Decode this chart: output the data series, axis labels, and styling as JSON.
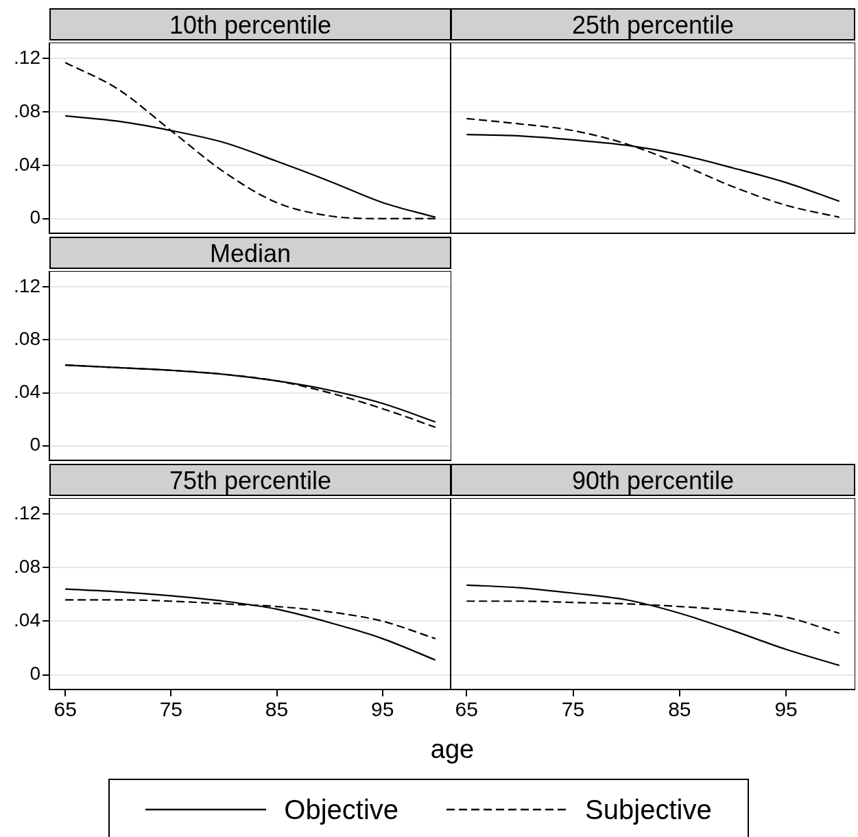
{
  "chart_data": [
    {
      "type": "line",
      "title": "10th percentile",
      "x": [
        65,
        70,
        75,
        80,
        85,
        90,
        95,
        100
      ],
      "series": [
        {
          "color": "#000000",
          "line_style": "solid",
          "values": [
            0.077,
            0.073,
            0.066,
            0.057,
            0.043,
            0.028,
            0.012,
            0.001
          ]
        },
        {
          "color": "#000000",
          "line_style": "dashed",
          "values": [
            0.117,
            0.097,
            0.066,
            0.035,
            0.012,
            0.002,
            0.0,
            0.0
          ]
        }
      ],
      "xlim": [
        63.5,
        101.5
      ],
      "xticks": [
        65,
        75,
        85,
        95
      ],
      "ylim": [
        -0.011,
        0.132
      ],
      "yticks": [
        {
          "value": 0,
          "label": "0"
        },
        {
          "value": 0.04,
          "label": ".04"
        },
        {
          "value": 0.08,
          "label": ".08"
        },
        {
          "value": 0.12,
          "label": ".12"
        }
      ],
      "grid": "y",
      "tick_labels": "y"
    },
    {
      "type": "line",
      "title": "25th percentile",
      "x": [
        65,
        70,
        75,
        80,
        85,
        90,
        95,
        100
      ],
      "series": [
        {
          "color": "#000000",
          "line_style": "solid",
          "values": [
            0.063,
            0.062,
            0.059,
            0.055,
            0.048,
            0.038,
            0.027,
            0.013
          ]
        },
        {
          "color": "#000000",
          "line_style": "dashed",
          "values": [
            0.075,
            0.071,
            0.066,
            0.056,
            0.041,
            0.024,
            0.01,
            0.001
          ]
        }
      ],
      "xlim": [
        63.5,
        101.5
      ],
      "xticks": [
        65,
        75,
        85,
        95
      ],
      "ylim": [
        -0.011,
        0.132
      ],
      "yticks": [
        0,
        0.04,
        0.08,
        0.12
      ],
      "grid": "y",
      "tick_labels": false
    },
    {
      "type": "line",
      "title": "Median",
      "x": [
        65,
        70,
        75,
        80,
        85,
        90,
        95,
        100
      ],
      "series": [
        {
          "color": "#000000",
          "line_style": "solid",
          "values": [
            0.061,
            0.059,
            0.057,
            0.054,
            0.049,
            0.042,
            0.032,
            0.018
          ]
        },
        {
          "color": "#000000",
          "line_style": "dashed",
          "values": [
            0.061,
            0.059,
            0.057,
            0.054,
            0.049,
            0.04,
            0.028,
            0.014
          ]
        }
      ],
      "xlim": [
        63.5,
        101.5
      ],
      "xticks": [
        65,
        75,
        85,
        95
      ],
      "ylim": [
        -0.011,
        0.132
      ],
      "yticks": [
        {
          "value": 0,
          "label": "0"
        },
        {
          "value": 0.04,
          "label": ".04"
        },
        {
          "value": 0.08,
          "label": ".08"
        },
        {
          "value": 0.12,
          "label": ".12"
        }
      ],
      "grid": "y",
      "tick_labels": "y"
    },
    {
      "type": "line",
      "title": "75th percentile",
      "xlabel": "age",
      "legend": "bottom",
      "x": [
        65,
        70,
        75,
        80,
        85,
        90,
        95,
        100
      ],
      "series": [
        {
          "name": "Objective",
          "color": "#000000",
          "line_style": "solid",
          "values": [
            0.064,
            0.062,
            0.059,
            0.055,
            0.049,
            0.039,
            0.027,
            0.011
          ]
        },
        {
          "name": "Subjective",
          "color": "#000000",
          "line_style": "dashed",
          "values": [
            0.056,
            0.056,
            0.055,
            0.053,
            0.051,
            0.047,
            0.04,
            0.027
          ]
        }
      ],
      "xlim": [
        63.5,
        101.5
      ],
      "xticks": [
        65,
        75,
        85,
        95
      ],
      "ylim": [
        -0.011,
        0.132
      ],
      "yticks": [
        {
          "value": 0,
          "label": "0"
        },
        {
          "value": 0.04,
          "label": ".04"
        },
        {
          "value": 0.08,
          "label": ".08"
        },
        {
          "value": 0.12,
          "label": ".12"
        }
      ],
      "grid": "y"
    },
    {
      "type": "line",
      "title": "90th percentile",
      "x": [
        65,
        70,
        75,
        80,
        85,
        90,
        95,
        100
      ],
      "series": [
        {
          "color": "#000000",
          "line_style": "solid",
          "values": [
            0.067,
            0.065,
            0.061,
            0.056,
            0.046,
            0.033,
            0.019,
            0.007
          ]
        },
        {
          "color": "#000000",
          "line_style": "dashed",
          "values": [
            0.055,
            0.055,
            0.054,
            0.053,
            0.051,
            0.048,
            0.043,
            0.031
          ]
        }
      ],
      "xlim": [
        63.5,
        101.5
      ],
      "xticks": [
        65,
        75,
        85,
        95
      ],
      "ylim": [
        -0.011,
        0.132
      ],
      "yticks": [
        0,
        0.04,
        0.08,
        0.12
      ],
      "grid": "y",
      "tick_labels": "x"
    }
  ]
}
